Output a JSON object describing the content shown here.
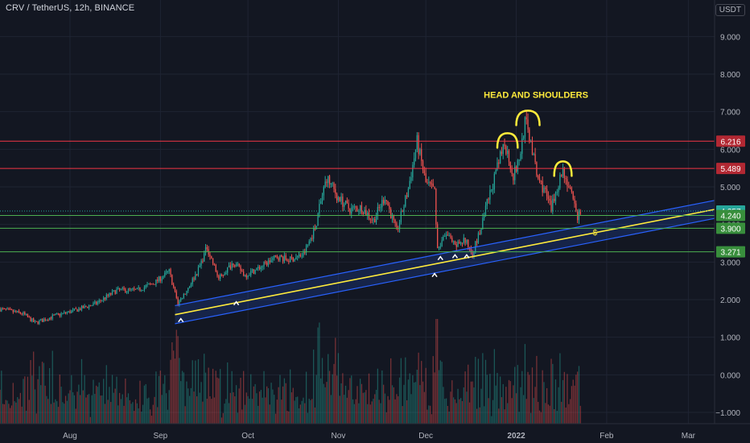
{
  "header": {
    "symbol": "CRV / TetherUS",
    "interval": "12h",
    "exchange": "BINANCE",
    "title": "CRV / TetherUS, 12h, BINANCE"
  },
  "currency_button": "USDT",
  "chart_data": {
    "type": "candlestick",
    "title": "CRV / TetherUS, 12h, BINANCE",
    "xlabel": "",
    "ylabel": "",
    "ylim": [
      -1.3,
      9.5
    ],
    "y_ticks": [
      "9.000",
      "8.000",
      "7.000",
      "6.000",
      "5.000",
      "4.000",
      "3.000",
      "2.000",
      "1.000",
      "0.000",
      "−1.000"
    ],
    "y_tick_values": [
      9,
      8,
      7,
      6,
      5,
      4,
      3,
      2,
      1,
      0,
      -1
    ],
    "x_ticks": [
      {
        "label": "Aug",
        "date": "2021-08-01"
      },
      {
        "label": "Sep",
        "date": "2021-09-01"
      },
      {
        "label": "Oct",
        "date": "2021-10-01"
      },
      {
        "label": "Nov",
        "date": "2021-11-01"
      },
      {
        "label": "Dec",
        "date": "2021-12-01"
      },
      {
        "label": "2022",
        "date": "2022-01-01"
      },
      {
        "label": "Feb",
        "date": "2022-02-01"
      },
      {
        "label": "Mar",
        "date": "2022-03-01"
      }
    ],
    "x_range": [
      "2021-07-08",
      "2022-03-10"
    ],
    "grid": true,
    "price_path": [
      [
        "2021-07-08",
        1.75
      ],
      [
        "2021-07-16",
        1.62
      ],
      [
        "2021-07-20",
        1.38
      ],
      [
        "2021-07-26",
        1.55
      ],
      [
        "2021-08-03",
        1.72
      ],
      [
        "2021-08-10",
        1.9
      ],
      [
        "2021-08-17",
        2.25
      ],
      [
        "2021-08-24",
        2.25
      ],
      [
        "2021-08-30",
        2.45
      ],
      [
        "2021-09-04",
        2.75
      ],
      [
        "2021-09-07",
        1.9
      ],
      [
        "2021-09-10",
        2.25
      ],
      [
        "2021-09-14",
        2.8
      ],
      [
        "2021-09-17",
        3.4
      ],
      [
        "2021-09-21",
        2.55
      ],
      [
        "2021-09-26",
        3.0
      ],
      [
        "2021-09-30",
        2.65
      ],
      [
        "2021-10-05",
        2.85
      ],
      [
        "2021-10-11",
        3.15
      ],
      [
        "2021-10-15",
        3.05
      ],
      [
        "2021-10-20",
        3.2
      ],
      [
        "2021-10-24",
        3.9
      ],
      [
        "2021-10-26",
        4.6
      ],
      [
        "2021-10-28",
        5.25
      ],
      [
        "2021-11-01",
        4.7
      ],
      [
        "2021-11-05",
        4.4
      ],
      [
        "2021-11-09",
        4.45
      ],
      [
        "2021-11-13",
        4.1
      ],
      [
        "2021-11-17",
        4.75
      ],
      [
        "2021-11-21",
        3.8
      ],
      [
        "2021-11-25",
        4.95
      ],
      [
        "2021-11-28",
        6.2
      ],
      [
        "2021-12-01",
        5.1
      ],
      [
        "2021-12-04",
        4.9
      ],
      [
        "2021-12-05",
        3.35
      ],
      [
        "2021-12-08",
        3.75
      ],
      [
        "2021-12-11",
        3.4
      ],
      [
        "2021-12-14",
        3.6
      ],
      [
        "2021-12-17",
        3.25
      ],
      [
        "2021-12-20",
        3.9
      ],
      [
        "2021-12-22",
        4.55
      ],
      [
        "2021-12-25",
        5.35
      ],
      [
        "2021-12-28",
        6.2
      ],
      [
        "2021-12-31",
        5.3
      ],
      [
        "2022-01-02",
        5.7
      ],
      [
        "2022-01-04",
        6.75
      ],
      [
        "2022-01-06",
        6.2
      ],
      [
        "2022-01-08",
        5.3
      ],
      [
        "2022-01-11",
        4.85
      ],
      [
        "2022-01-13",
        4.4
      ],
      [
        "2022-01-15",
        5.0
      ],
      [
        "2022-01-17",
        5.45
      ],
      [
        "2022-01-19",
        5.0
      ],
      [
        "2022-01-22",
        4.2
      ],
      [
        "2022-01-23",
        4.35
      ]
    ],
    "volume_note": "volume histogram along the bottom of the pane, red and green bars",
    "horizontal_levels": [
      {
        "label": "6.216",
        "value": 6.216,
        "color": "#f23645",
        "label_bg": "#b22833"
      },
      {
        "label": "5.489",
        "value": 5.489,
        "color": "#f23645",
        "label_bg": "#b22833"
      },
      {
        "label": "4.357",
        "value": 4.357,
        "color": "#26a69a",
        "label_bg": "#26a69a",
        "dotted": true
      },
      {
        "label": "4.240",
        "value": 4.24,
        "color": "#4caf50",
        "label_bg": "#388e3c"
      },
      {
        "label": "3.900",
        "value": 3.9,
        "color": "#4caf50",
        "label_bg": "#388e3c"
      },
      {
        "label": "3.271",
        "value": 3.271,
        "color": "#4caf50",
        "label_bg": "#388e3c"
      }
    ],
    "channel": {
      "start": [
        "2021-09-06",
        1.6
      ],
      "end": [
        "2022-03-10",
        4.4
      ],
      "half_width": 0.24,
      "line_color": "#ffeb3b",
      "band_color": "#2962ff"
    },
    "annotations": {
      "pattern_label": "HEAD AND SHOULDERS",
      "arcs": [
        {
          "name": "left-shoulder",
          "date": "2021-12-29",
          "value": 6.3,
          "half_days": 3.5
        },
        {
          "name": "head",
          "date": "2022-01-05",
          "value": 6.9,
          "half_days": 4
        },
        {
          "name": "right-shoulder",
          "date": "2022-01-17",
          "value": 5.55,
          "half_days": 3
        }
      ],
      "support_markers": [
        {
          "date": "2021-09-08",
          "value": 1.45
        },
        {
          "date": "2021-09-27",
          "value": 1.9
        },
        {
          "date": "2021-12-04",
          "value": 2.65
        },
        {
          "date": "2021-12-06",
          "value": 3.1
        },
        {
          "date": "2021-12-11",
          "value": 3.15
        },
        {
          "date": "2021-12-15",
          "value": 3.15
        }
      ],
      "dollar_marker": {
        "text": "$",
        "date": "2022-01-28",
        "value": 3.8
      }
    },
    "colors": {
      "up": "#26a69a",
      "down": "#ef5350",
      "background": "#131722",
      "grid": "#1f2433",
      "text": "#b2b5be",
      "annotation": "#ffeb3b"
    }
  }
}
